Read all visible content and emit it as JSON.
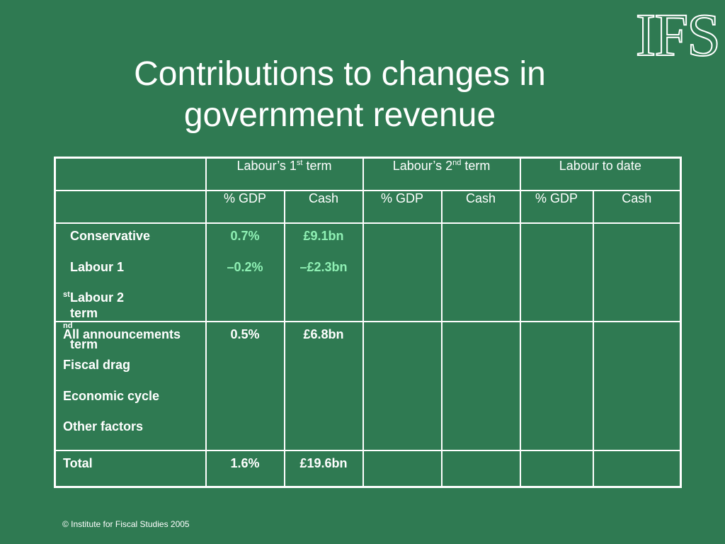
{
  "logo": "IFS",
  "title": "Contributions to changes in government revenue",
  "table": {
    "groups": [
      {
        "base": "Labour’s 1",
        "sup": "st",
        "tail": " term"
      },
      {
        "base": "Labour’s 2",
        "sup": "nd",
        "tail": " term"
      },
      {
        "base": "Labour to date",
        "sup": "",
        "tail": ""
      }
    ],
    "subheaders": [
      "% GDP",
      "Cash",
      "% GDP",
      "Cash",
      "% GDP",
      "Cash"
    ],
    "block1": {
      "labels": [
        {
          "base": "Conservative",
          "sup": "",
          "tail": ""
        },
        {
          "base": "Labour 1",
          "sup": "st",
          "tail": " term"
        },
        {
          "base": "Labour 2",
          "sup": "nd",
          "tail": " term"
        }
      ],
      "gdp": [
        "0.7%",
        "–0.2%"
      ],
      "cash": [
        "£9.1bn",
        "–£2.3bn"
      ]
    },
    "block2": {
      "labels": [
        "All announcements",
        "Fiscal drag",
        "Economic cycle",
        "Other factors"
      ],
      "gdp": [
        "0.5%"
      ],
      "cash": [
        "£6.8bn"
      ]
    },
    "total": {
      "label": "Total",
      "gdp": "1.6%",
      "cash": "£19.6bn"
    }
  },
  "colors": {
    "background": "#2f7a52",
    "accent_values": "#8ff0b4"
  },
  "footer": "© Institute for Fiscal Studies 2005"
}
